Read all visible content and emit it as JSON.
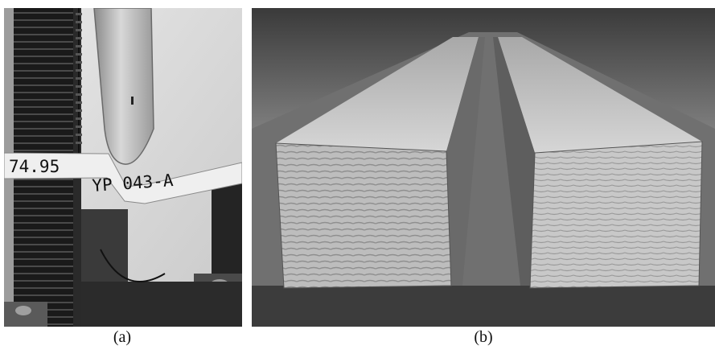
{
  "panels": [
    {
      "caption": "(a)",
      "specimen_tag": {
        "left_label": "74.95",
        "right_label": "YP 043-A"
      }
    },
    {
      "caption": "(b)"
    }
  ],
  "colors": {
    "background": "#ffffff",
    "dark_metal": "#1e1e1e",
    "wood_light": "#d9d9d9",
    "wood_end_grain": "#b8b8b8"
  }
}
